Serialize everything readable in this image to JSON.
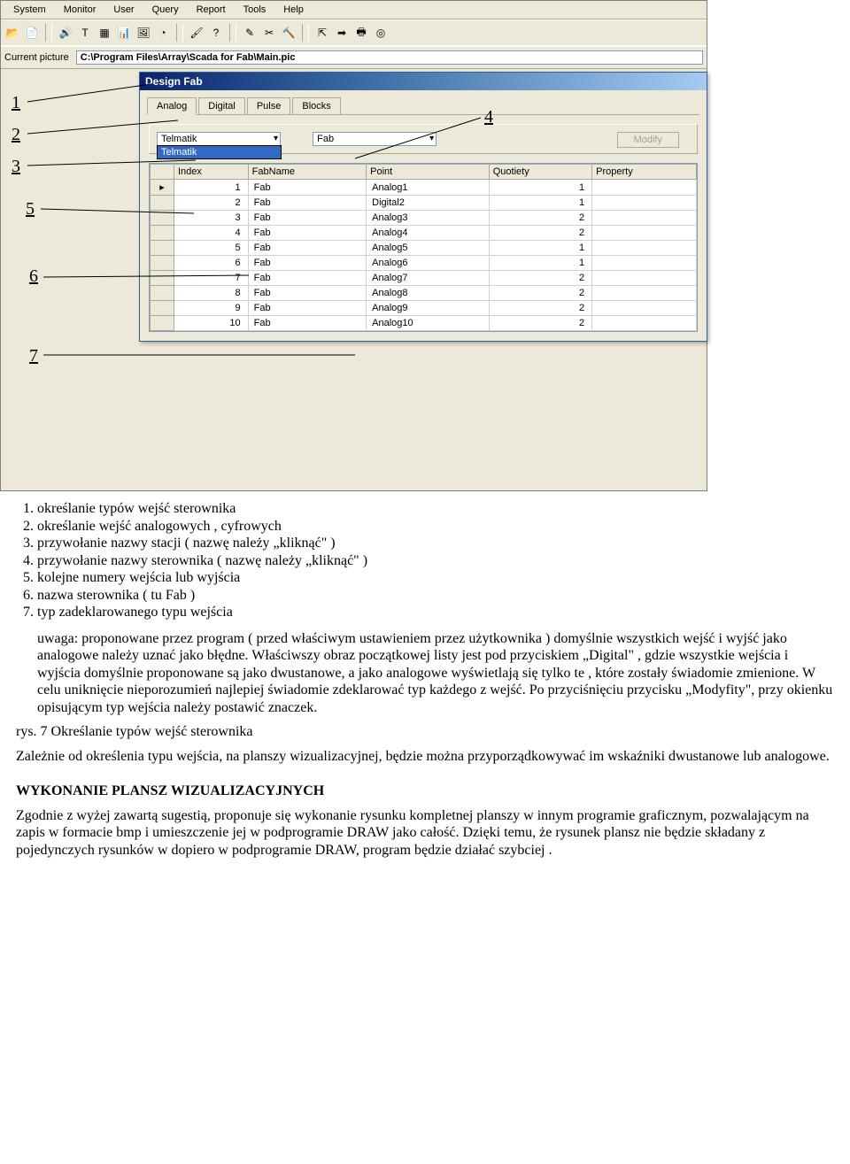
{
  "menubar": [
    "System",
    "Monitor",
    "User",
    "Query",
    "Report",
    "Tools",
    "Help"
  ],
  "toolbar_icons": [
    "folder-open-icon",
    "document-icon",
    "speaker-icon",
    "text-icon",
    "grid-icon",
    "chart-icon",
    "picture-icon",
    "gauge-icon",
    "brush-icon",
    "help-icon",
    "edit-icon",
    "scissors-icon",
    "hammer-icon",
    "export-icon",
    "arrow-right-red-icon",
    "printer-icon",
    "target-icon"
  ],
  "pathbar": {
    "label": "Current picture",
    "value": "C:\\Program Files\\Array\\Scada for Fab\\Main.pic"
  },
  "child_window": {
    "title": "Design Fab",
    "tabs": [
      "Analog",
      "Digital",
      "Pulse",
      "Blocks"
    ],
    "active_tab": 0,
    "combo1": "Telmatik",
    "combo1_options": [
      "Telmatik"
    ],
    "combo2": "Fab",
    "modify_label": "Modify",
    "grid": {
      "columns": [
        "",
        "Index",
        "FabName",
        "Point",
        "Quotiety",
        "Property"
      ],
      "rows": [
        [
          "▸",
          "1",
          "Fab",
          "Analog1",
          "1",
          ""
        ],
        [
          "",
          "2",
          "Fab",
          "Digital2",
          "1",
          ""
        ],
        [
          "",
          "3",
          "Fab",
          "Analog3",
          "2",
          ""
        ],
        [
          "",
          "4",
          "Fab",
          "Analog4",
          "2",
          ""
        ],
        [
          "",
          "5",
          "Fab",
          "Analog5",
          "1",
          ""
        ],
        [
          "",
          "6",
          "Fab",
          "Analog6",
          "1",
          ""
        ],
        [
          "",
          "7",
          "Fab",
          "Analog7",
          "2",
          ""
        ],
        [
          "",
          "8",
          "Fab",
          "Analog8",
          "2",
          ""
        ],
        [
          "",
          "9",
          "Fab",
          "Analog9",
          "2",
          ""
        ],
        [
          "",
          "10",
          "Fab",
          "Analog10",
          "2",
          ""
        ]
      ]
    }
  },
  "callouts": {
    "labels": {
      "1": "1",
      "2": "2",
      "3": "3",
      "4": "4",
      "5": "5",
      "6": "6",
      "7": "7"
    }
  },
  "text": {
    "list": [
      "określanie typów wejść sterownika",
      "określanie wejść  analogowych , cyfrowych",
      "przywołanie nazwy stacji ( nazwę należy „kliknąć\" )",
      "przywołanie nazwy sterownika ( nazwę należy „kliknąć\" )",
      "kolejne numery  wejścia lub wyjścia",
      "nazwa sterownika ( tu Fab )",
      "typ zadeklarowanego typu wejścia"
    ],
    "uwaga": "uwaga: proponowane przez program ( przed właściwym  ustawieniem przez użytkownika ) domyślnie wszystkich  wejść i wyjść  jako analogowe  należy uznać jako błędne.  Właściwszy obraz początkowej listy jest pod przyciskiem  „Digital\" , gdzie wszystkie wejścia i wyjścia domyślnie proponowane są  jako dwustanowe, a  jako analogowe wyświetlają się tylko te , które zostały  świadomie zmienione. W celu uniknięcie nieporozumień najlepiej świadomie zdeklarować typ każdego z wejść. Po przyciśnięciu przycisku „Modyfity\", przy okienku opisującym typ wejścia należy postawić znaczek.",
    "caption": "rys. 7 Określanie typów wejść sterownika",
    "para1": "Zależnie od określenia typu wejścia, na planszy wizualizacyjnej, będzie można przyporządkowywać im wskaźniki dwustanowe lub analogowe.",
    "heading": "WYKONANIE PLANSZ WIZUALIZACYJNYCH",
    "para2": "Zgodnie z wyżej zawartą sugestią, proponuje się wykonanie rysunku kompletnej planszy w innym programie graficznym, pozwalającym na zapis w formacie bmp i umieszczenie jej w podprogramie DRAW jako całość. Dzięki temu, że rysunek plansz  nie będzie  składany z pojedynczych rysunków  w dopiero w podprogramie DRAW,  program będzie  działać szybciej ."
  }
}
